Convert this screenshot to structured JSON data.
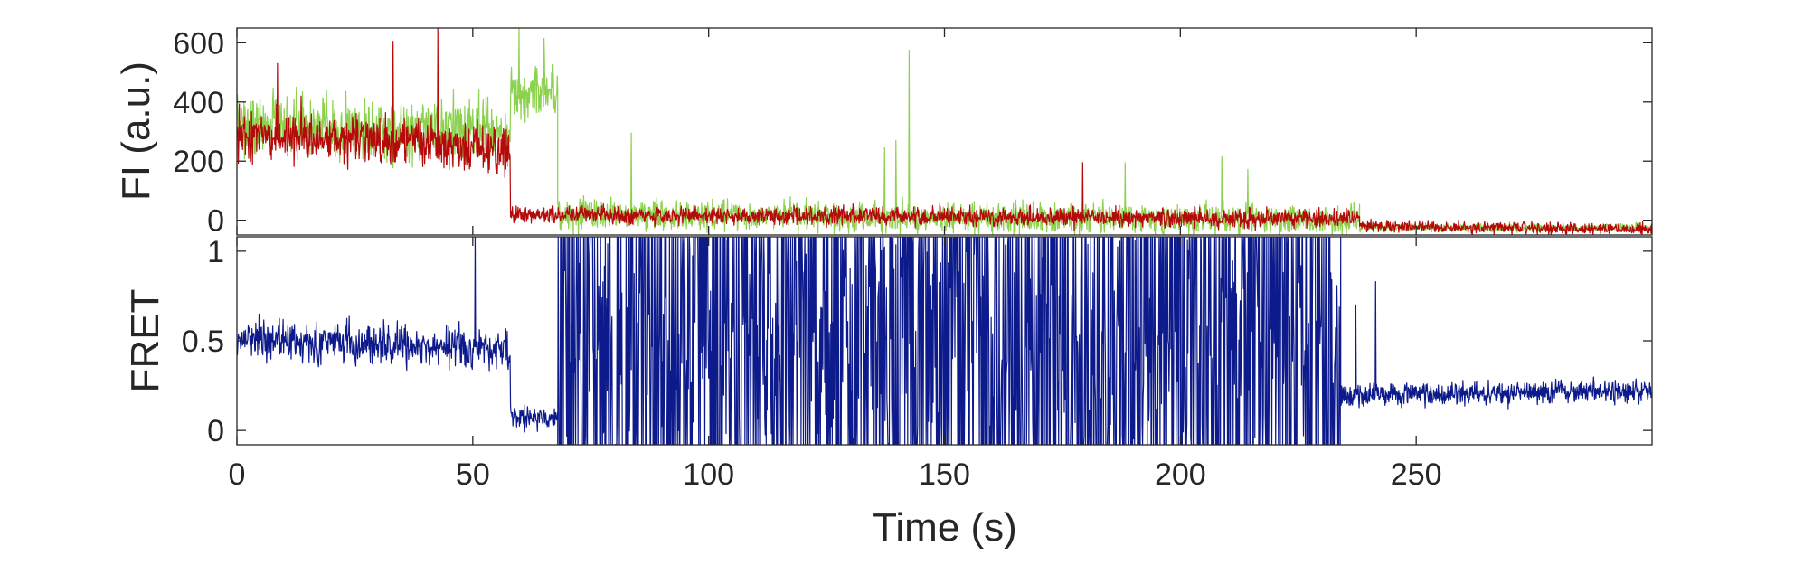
{
  "chart_data": [
    {
      "type": "line",
      "panel": "top",
      "ylabel": "FI (a.u.)",
      "xlabel": "",
      "xlim": [
        0,
        300
      ],
      "ylim": [
        -50,
        650
      ],
      "yticks": [
        0,
        200,
        400,
        600
      ],
      "grid": false,
      "legend": "none",
      "series": [
        {
          "color": "#8cd24e",
          "stroke": 1.2,
          "segments": [
            {
              "x0": 0,
              "x1": 58,
              "start": 330,
              "end": 300,
              "noise": 95
            },
            {
              "x0": 58,
              "x1": 68,
              "start": 430,
              "end": 440,
              "noise": 85
            },
            {
              "x0": 68,
              "x1": 238,
              "start": 20,
              "end": 0,
              "noise": 45
            },
            {
              "x0": 238,
              "x1": 300,
              "start": -25,
              "end": -25,
              "noise": 12
            }
          ],
          "spikes": [
            {
              "x": 59.8,
              "y": 650
            },
            {
              "x": 65.1,
              "y": 615
            },
            {
              "x": 83.6,
              "y": 295
            },
            {
              "x": 142.5,
              "y": 575
            },
            {
              "x": 139.7,
              "y": 270
            },
            {
              "x": 137.3,
              "y": 245
            },
            {
              "x": 188.3,
              "y": 195
            },
            {
              "x": 208.8,
              "y": 215
            },
            {
              "x": 214.3,
              "y": 172
            }
          ]
        },
        {
          "color": "#b50a0a",
          "stroke": 1.2,
          "segments": [
            {
              "x0": 0,
              "x1": 58,
              "start": 295,
              "end": 240,
              "noise": 70
            },
            {
              "x0": 58,
              "x1": 238,
              "start": 20,
              "end": 5,
              "noise": 28
            },
            {
              "x0": 238,
              "x1": 300,
              "start": -20,
              "end": -30,
              "noise": 18
            }
          ],
          "spikes": [
            {
              "x": 42.6,
              "y": 660
            },
            {
              "x": 8.6,
              "y": 530
            },
            {
              "x": 13.6,
              "y": 420
            },
            {
              "x": 33.1,
              "y": 605
            },
            {
              "x": 179.3,
              "y": 195
            }
          ]
        }
      ]
    },
    {
      "type": "line",
      "panel": "bottom",
      "ylabel": "FRET",
      "xlabel": "Time (s)",
      "xlim": [
        0,
        300
      ],
      "ylim": [
        -0.08,
        1.08
      ],
      "xticks": [
        0,
        50,
        100,
        150,
        200,
        250
      ],
      "yticks": [
        0,
        0.5,
        1
      ],
      "ytick_labels": [
        "0",
        "0.5",
        "1"
      ],
      "grid": false,
      "legend": "none",
      "series": [
        {
          "color": "#0d1a8c",
          "stroke": 1.2,
          "segments": [
            {
              "x0": 0,
              "x1": 58,
              "start": 0.52,
              "end": 0.45,
              "noise": 0.1
            },
            {
              "x0": 58,
              "x1": 68,
              "start": 0.08,
              "end": 0.06,
              "noise": 0.06
            },
            {
              "x0": 68,
              "x1": 234,
              "start": 0.5,
              "end": 0.5,
              "noise": 0.6,
              "mode": "bimodal"
            },
            {
              "x0": 234,
              "x1": 300,
              "start": 0.2,
              "end": 0.22,
              "noise": 0.06
            }
          ],
          "spikes": [
            {
              "x": 50.5,
              "y": 1.08
            },
            {
              "x": 241.4,
              "y": 0.83
            },
            {
              "x": 237.2,
              "y": 0.7
            }
          ]
        }
      ]
    }
  ]
}
